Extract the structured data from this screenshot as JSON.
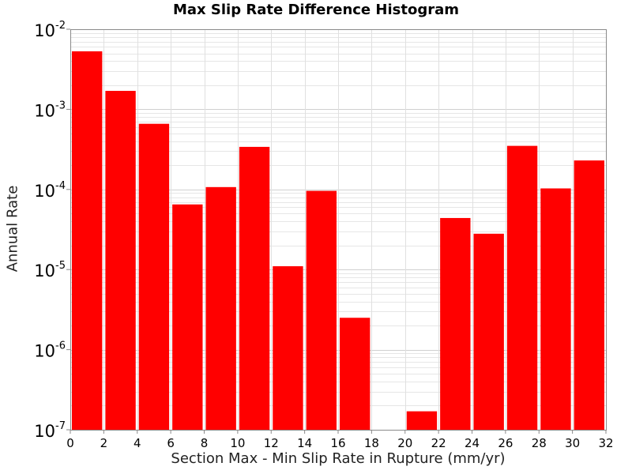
{
  "chart_data": {
    "type": "bar",
    "title": "Max Slip Rate Difference Histogram",
    "xlabel": "Section Max - Min Slip Rate in Rupture (mm/yr)",
    "ylabel": "Annual Rate",
    "yscale": "log",
    "xlim": [
      0,
      32
    ],
    "ylim": [
      1e-07,
      0.01
    ],
    "bar_color": "#ff0000",
    "grid": true,
    "bin_width": 2,
    "x_ticks": [
      "0",
      "2",
      "4",
      "6",
      "8",
      "10",
      "12",
      "14",
      "16",
      "18",
      "20",
      "22",
      "24",
      "26",
      "28",
      "30",
      "32"
    ],
    "y_ticks": [
      {
        "base": "10",
        "exp": "-2",
        "value": 0.01
      },
      {
        "base": "10",
        "exp": "-3",
        "value": 0.001
      },
      {
        "base": "10",
        "exp": "-4",
        "value": 0.0001
      },
      {
        "base": "10",
        "exp": "-5",
        "value": 1e-05
      },
      {
        "base": "10",
        "exp": "-6",
        "value": 1e-06
      },
      {
        "base": "10",
        "exp": "-7",
        "value": 1e-07
      }
    ],
    "bins": [
      {
        "x": 1,
        "value": 0.0053
      },
      {
        "x": 3,
        "value": 0.0017
      },
      {
        "x": 5,
        "value": 0.00066
      },
      {
        "x": 7,
        "value": 6.5e-05
      },
      {
        "x": 9,
        "value": 0.000107
      },
      {
        "x": 11,
        "value": 0.00034
      },
      {
        "x": 13,
        "value": 1.1e-05
      },
      {
        "x": 15,
        "value": 9.6e-05
      },
      {
        "x": 17,
        "value": 2.5e-06
      },
      {
        "x": 19,
        "value": null
      },
      {
        "x": 21,
        "value": 1.7e-07
      },
      {
        "x": 23,
        "value": 4.4e-05
      },
      {
        "x": 25,
        "value": 2.8e-05
      },
      {
        "x": 27,
        "value": 0.00035
      },
      {
        "x": 29,
        "value": 0.000103
      },
      {
        "x": 31,
        "value": 0.00023
      }
    ]
  }
}
